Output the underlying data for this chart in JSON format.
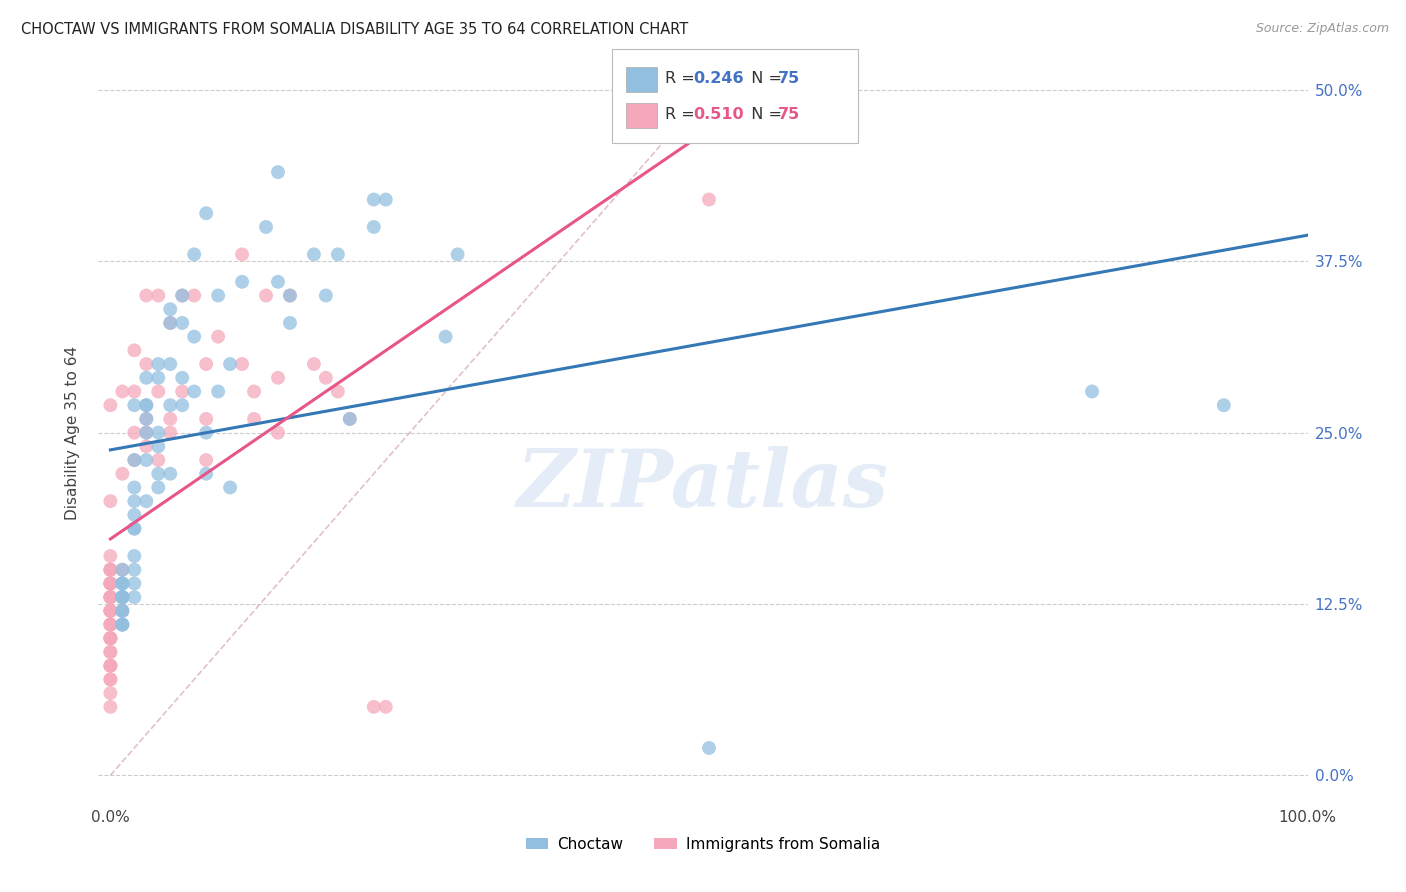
{
  "title": "CHOCTAW VS IMMIGRANTS FROM SOMALIA DISABILITY AGE 35 TO 64 CORRELATION CHART",
  "source": "Source: ZipAtlas.com",
  "ylabel": "Disability Age 35 to 64",
  "xlim": [
    0,
    100
  ],
  "ylim": [
    -2,
    52
  ],
  "xticks": [
    0,
    25,
    50,
    75,
    100
  ],
  "xticklabels": [
    "0.0%",
    "",
    "",
    "",
    "100.0%"
  ],
  "yticks": [
    0,
    12.5,
    25,
    37.5,
    50
  ],
  "yticklabels": [
    "0.0%",
    "12.5%",
    "25.0%",
    "37.5%",
    "50.0%"
  ],
  "choctaw_color": "#92bfdf",
  "somalia_color": "#f5a8bb",
  "choctaw_line_color": "#3478b5",
  "somalia_line_color": "#e8558a",
  "diagonal_color": "#ddbcbc",
  "legend_choctaw_R": "0.246",
  "legend_choctaw_N": "75",
  "legend_somalia_R": "0.510",
  "legend_somalia_N": "75",
  "background_color": "#ffffff",
  "grid_color": "#cccccc",
  "watermark": "ZIPatlas",
  "choctaw_x": [
    1,
    1,
    1,
    1,
    1,
    1,
    1,
    1,
    1,
    1,
    1,
    1,
    1,
    1,
    2,
    2,
    2,
    2,
    2,
    2,
    2,
    2,
    2,
    2,
    2,
    3,
    3,
    3,
    3,
    3,
    3,
    3,
    4,
    4,
    4,
    4,
    4,
    4,
    5,
    5,
    5,
    5,
    5,
    6,
    6,
    6,
    6,
    7,
    7,
    7,
    8,
    8,
    8,
    9,
    9,
    10,
    10,
    11,
    13,
    14,
    14,
    15,
    15,
    17,
    18,
    19,
    20,
    22,
    22,
    23,
    28,
    29,
    50,
    82,
    93
  ],
  "choctaw_y": [
    15,
    14,
    14,
    14,
    13,
    13,
    13,
    13,
    13,
    12,
    12,
    11,
    11,
    11,
    27,
    23,
    21,
    20,
    19,
    18,
    18,
    16,
    15,
    14,
    13,
    29,
    27,
    27,
    26,
    25,
    23,
    20,
    30,
    29,
    25,
    24,
    22,
    21,
    34,
    33,
    30,
    27,
    22,
    35,
    33,
    29,
    27,
    38,
    32,
    28,
    41,
    25,
    22,
    35,
    28,
    30,
    21,
    36,
    40,
    44,
    36,
    35,
    33,
    38,
    35,
    38,
    26,
    42,
    40,
    42,
    32,
    38,
    2,
    28,
    27
  ],
  "somalia_x": [
    0,
    0,
    0,
    0,
    0,
    0,
    0,
    0,
    0,
    0,
    0,
    0,
    0,
    0,
    0,
    0,
    0,
    0,
    0,
    0,
    0,
    0,
    0,
    0,
    0,
    0,
    0,
    0,
    0,
    0,
    0,
    0,
    0,
    1,
    1,
    1,
    1,
    1,
    2,
    2,
    2,
    2,
    3,
    3,
    3,
    3,
    3,
    4,
    4,
    4,
    5,
    5,
    5,
    6,
    6,
    7,
    8,
    8,
    8,
    9,
    11,
    11,
    12,
    12,
    13,
    14,
    14,
    15,
    17,
    18,
    19,
    20,
    22,
    23,
    50
  ],
  "somalia_y": [
    27,
    20,
    16,
    15,
    15,
    15,
    14,
    14,
    14,
    14,
    13,
    13,
    13,
    13,
    12,
    12,
    12,
    11,
    11,
    11,
    10,
    10,
    10,
    10,
    9,
    9,
    8,
    8,
    8,
    7,
    7,
    6,
    5,
    28,
    22,
    15,
    13,
    12,
    31,
    28,
    25,
    23,
    35,
    30,
    26,
    25,
    24,
    35,
    28,
    23,
    33,
    26,
    25,
    35,
    28,
    35,
    30,
    26,
    23,
    32,
    38,
    30,
    28,
    26,
    35,
    29,
    25,
    35,
    30,
    29,
    28,
    26,
    5,
    5,
    42
  ]
}
